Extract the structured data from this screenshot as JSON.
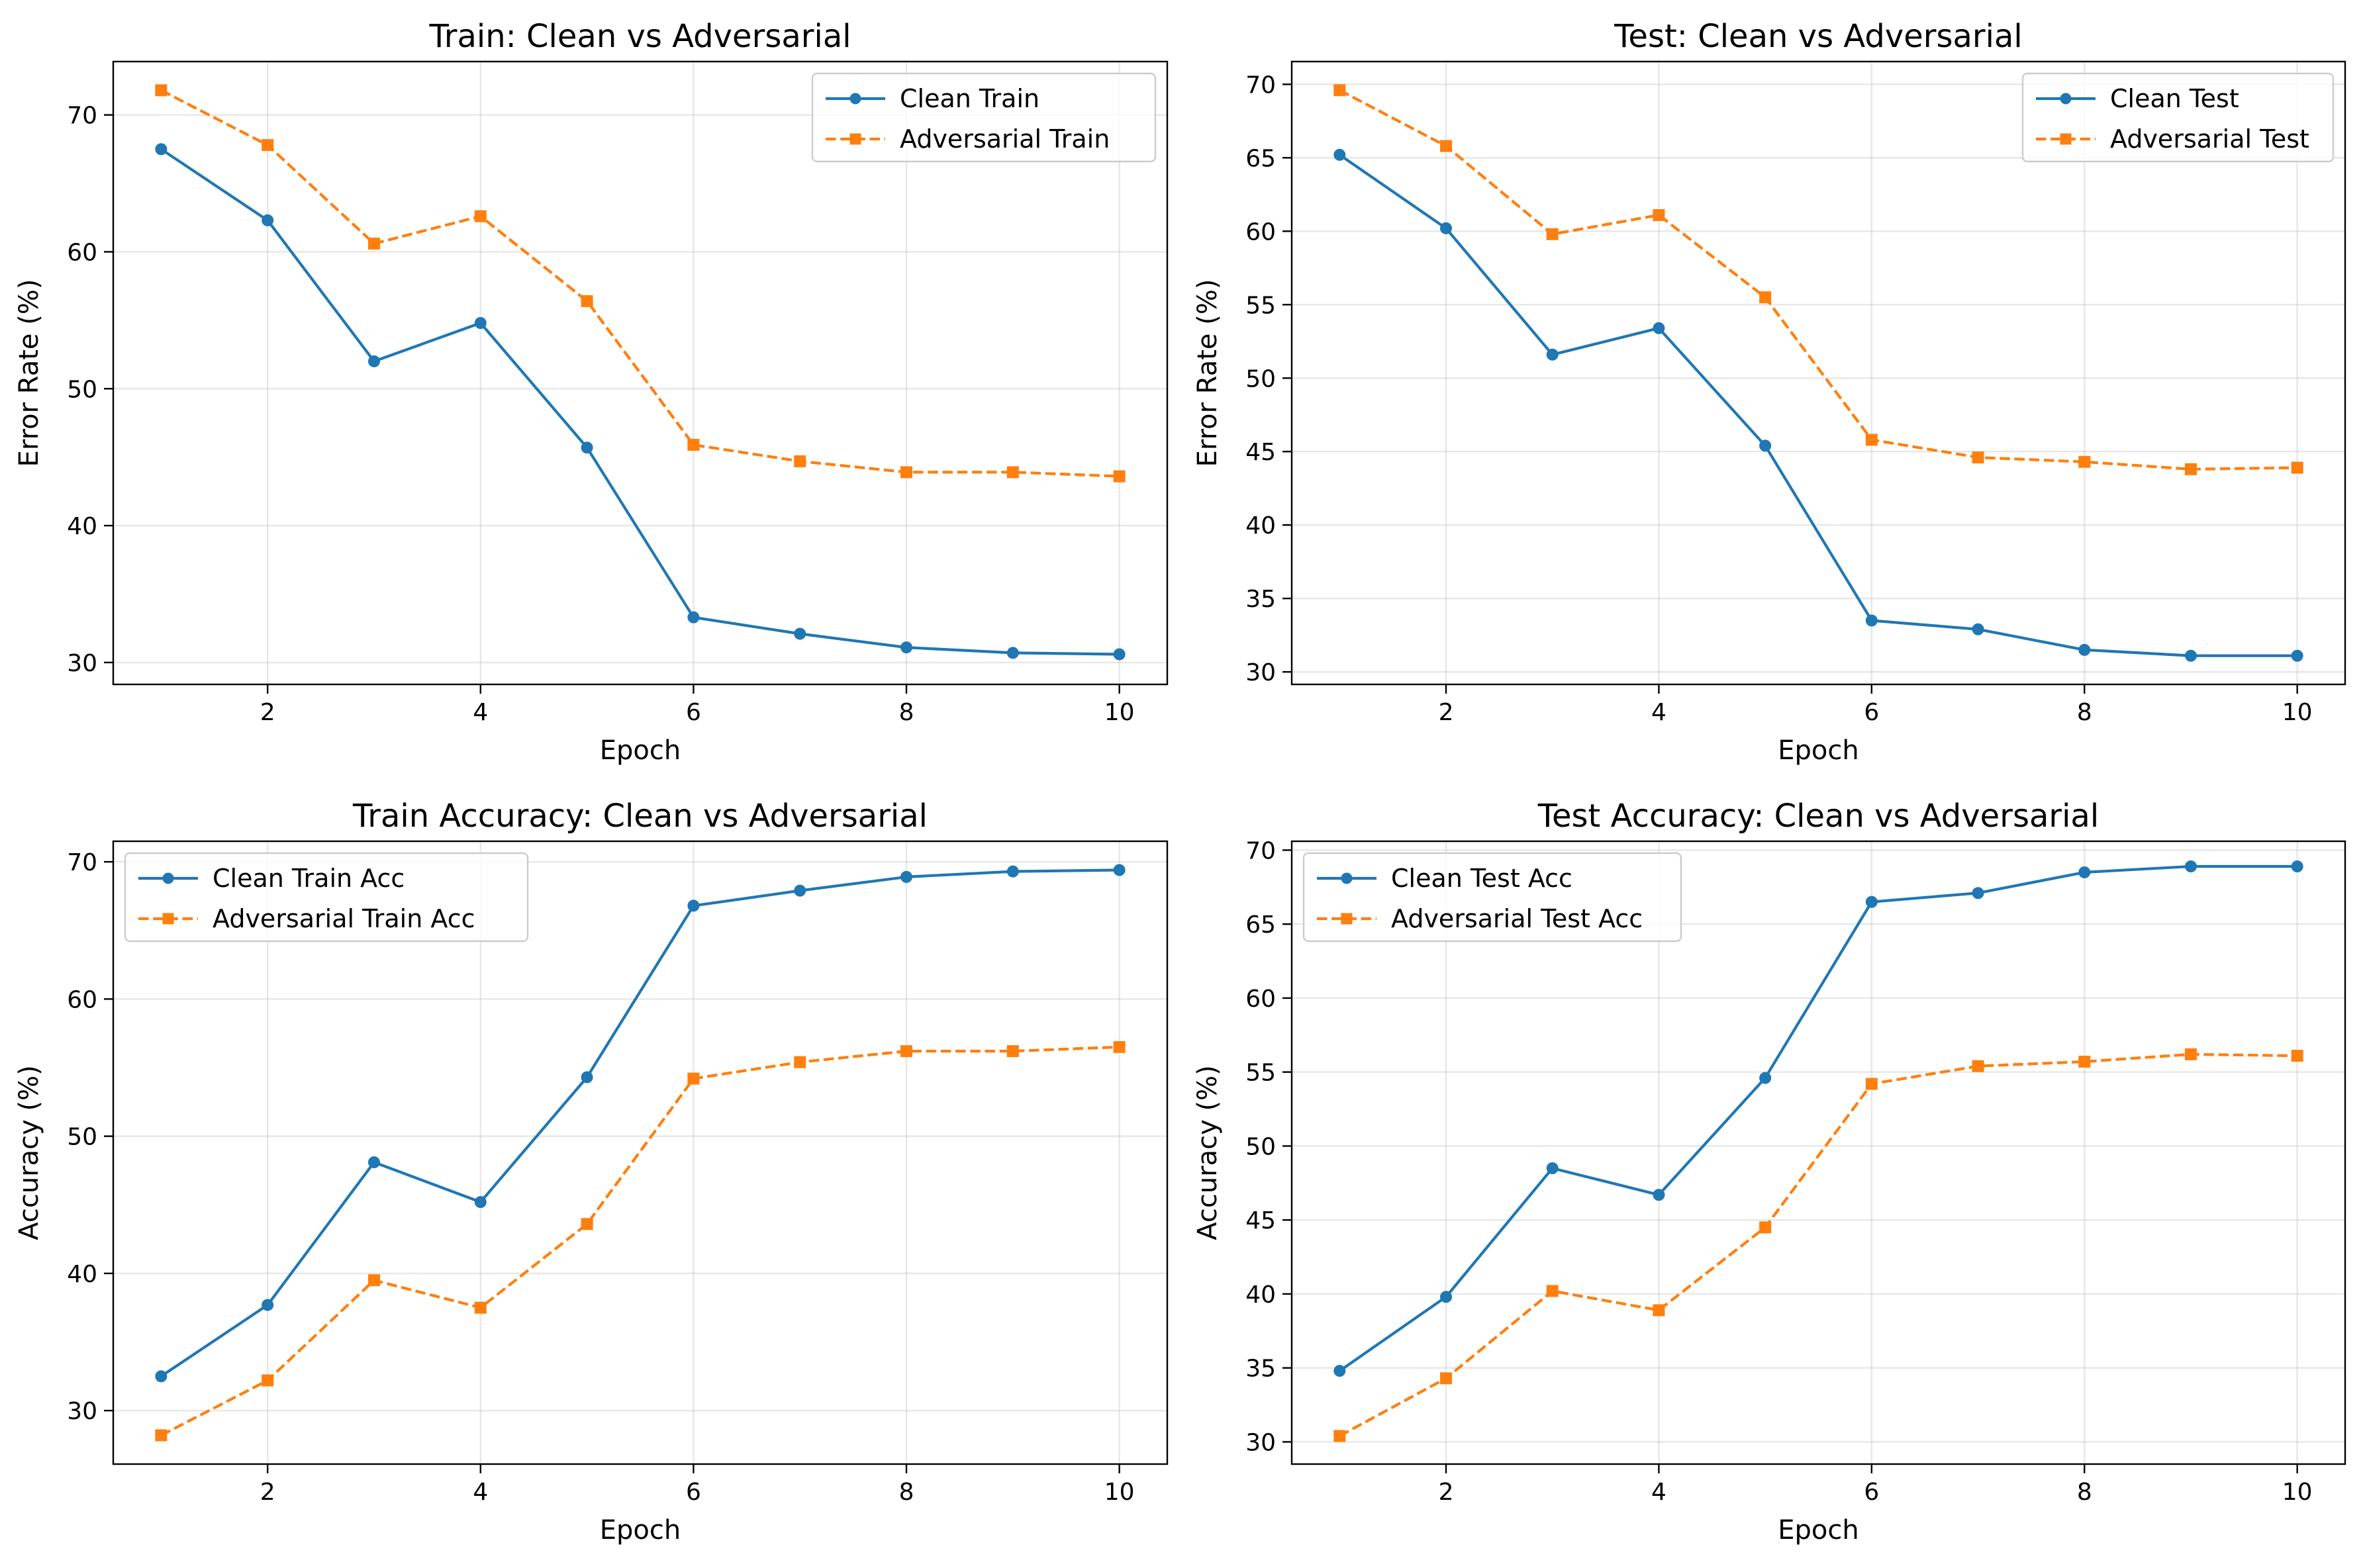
{
  "chart_data": [
    {
      "type": "line",
      "title": "Train: Clean vs Adversarial",
      "xlabel": "Epoch",
      "ylabel": "Error Rate (%)",
      "x": [
        1,
        2,
        3,
        4,
        5,
        6,
        7,
        8,
        9,
        10
      ],
      "xlim": [
        0.55,
        10.45
      ],
      "ylim": [
        28.4,
        73.9
      ],
      "xticks": [
        2,
        4,
        6,
        8,
        10
      ],
      "yticks": [
        30,
        40,
        50,
        60,
        70
      ],
      "grid": true,
      "legend_loc": "upper right",
      "series": [
        {
          "name": "Clean Train",
          "values": [
            67.5,
            62.3,
            52.0,
            54.8,
            45.7,
            33.3,
            32.1,
            31.1,
            30.7,
            30.6
          ],
          "color": "#1f77b4",
          "style": "solid",
          "marker": "circle"
        },
        {
          "name": "Adversarial Train",
          "values": [
            71.8,
            67.8,
            60.6,
            62.6,
            56.4,
            45.9,
            44.7,
            43.9,
            43.9,
            43.6
          ],
          "color": "#ff7f0e",
          "style": "dashed",
          "marker": "square"
        }
      ]
    },
    {
      "type": "line",
      "title": "Test: Clean vs Adversarial",
      "xlabel": "Epoch",
      "ylabel": "Error Rate (%)",
      "x": [
        1,
        2,
        3,
        4,
        5,
        6,
        7,
        8,
        9,
        10
      ],
      "xlim": [
        0.55,
        10.45
      ],
      "ylim": [
        29.15,
        71.55
      ],
      "xticks": [
        2,
        4,
        6,
        8,
        10
      ],
      "yticks": [
        30,
        35,
        40,
        45,
        50,
        55,
        60,
        65,
        70
      ],
      "grid": true,
      "legend_loc": "upper right",
      "series": [
        {
          "name": "Clean Test",
          "values": [
            65.2,
            60.2,
            51.6,
            53.4,
            45.4,
            33.5,
            32.9,
            31.5,
            31.1,
            31.1
          ],
          "color": "#1f77b4",
          "style": "solid",
          "marker": "circle"
        },
        {
          "name": "Adversarial Test",
          "values": [
            69.6,
            65.8,
            59.8,
            61.1,
            55.5,
            45.8,
            44.6,
            44.3,
            43.8,
            43.9
          ],
          "color": "#ff7f0e",
          "style": "dashed",
          "marker": "square"
        }
      ]
    },
    {
      "type": "line",
      "title": "Train Accuracy: Clean vs Adversarial",
      "xlabel": "Epoch",
      "ylabel": "Accuracy (%)",
      "x": [
        1,
        2,
        3,
        4,
        5,
        6,
        7,
        8,
        9,
        10
      ],
      "xlim": [
        0.55,
        10.45
      ],
      "ylim": [
        26.1,
        71.5
      ],
      "xticks": [
        2,
        4,
        6,
        8,
        10
      ],
      "yticks": [
        30,
        40,
        50,
        60,
        70
      ],
      "grid": true,
      "legend_loc": "upper left",
      "series": [
        {
          "name": "Clean Train Acc",
          "values": [
            32.5,
            37.7,
            48.1,
            45.2,
            54.3,
            66.8,
            67.9,
            68.9,
            69.3,
            69.4
          ],
          "color": "#1f77b4",
          "style": "solid",
          "marker": "circle"
        },
        {
          "name": "Adversarial Train Acc",
          "values": [
            28.2,
            32.2,
            39.5,
            37.5,
            43.6,
            54.2,
            55.4,
            56.2,
            56.2,
            56.5
          ],
          "color": "#ff7f0e",
          "style": "dashed",
          "marker": "square"
        }
      ]
    },
    {
      "type": "line",
      "title": "Test Accuracy: Clean vs Adversarial",
      "xlabel": "Epoch",
      "ylabel": "Accuracy (%)",
      "x": [
        1,
        2,
        3,
        4,
        5,
        6,
        7,
        8,
        9,
        10
      ],
      "xlim": [
        0.55,
        10.45
      ],
      "ylim": [
        28.5,
        70.6
      ],
      "xticks": [
        2,
        4,
        6,
        8,
        10
      ],
      "yticks": [
        30,
        35,
        40,
        45,
        50,
        55,
        60,
        65,
        70
      ],
      "grid": true,
      "legend_loc": "upper left",
      "series": [
        {
          "name": "Clean Test Acc",
          "values": [
            34.8,
            39.8,
            48.5,
            46.7,
            54.6,
            66.5,
            67.1,
            68.5,
            68.9,
            68.9
          ],
          "color": "#1f77b4",
          "style": "solid",
          "marker": "circle"
        },
        {
          "name": "Adversarial Test Acc",
          "values": [
            30.4,
            34.3,
            40.2,
            38.9,
            44.5,
            54.2,
            55.4,
            55.7,
            56.2,
            56.1
          ],
          "color": "#ff7f0e",
          "style": "dashed",
          "marker": "square"
        }
      ]
    }
  ]
}
